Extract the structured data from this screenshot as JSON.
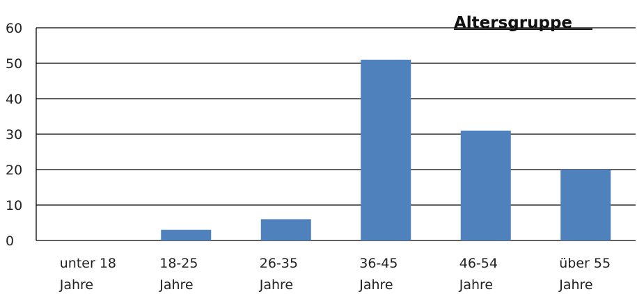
{
  "chart_data": {
    "type": "bar",
    "title": "Altersgruppe",
    "xlabel": "",
    "ylabel": "",
    "categories": [
      [
        "unter 18",
        "Jahre"
      ],
      [
        "18-25",
        "Jahre"
      ],
      [
        "26-35",
        "Jahre"
      ],
      [
        "36-45",
        "Jahre"
      ],
      [
        "46-54",
        "Jahre"
      ],
      [
        "über 55",
        "Jahre"
      ]
    ],
    "values": [
      0,
      3,
      6,
      51,
      31,
      20
    ],
    "ylim": [
      0,
      60
    ],
    "yticks": [
      "0",
      "10",
      "20",
      "30",
      "40",
      "50",
      "60"
    ],
    "grid": true,
    "legend": "none",
    "bar_color": "#4f81bd",
    "grid_color": "#000000"
  }
}
